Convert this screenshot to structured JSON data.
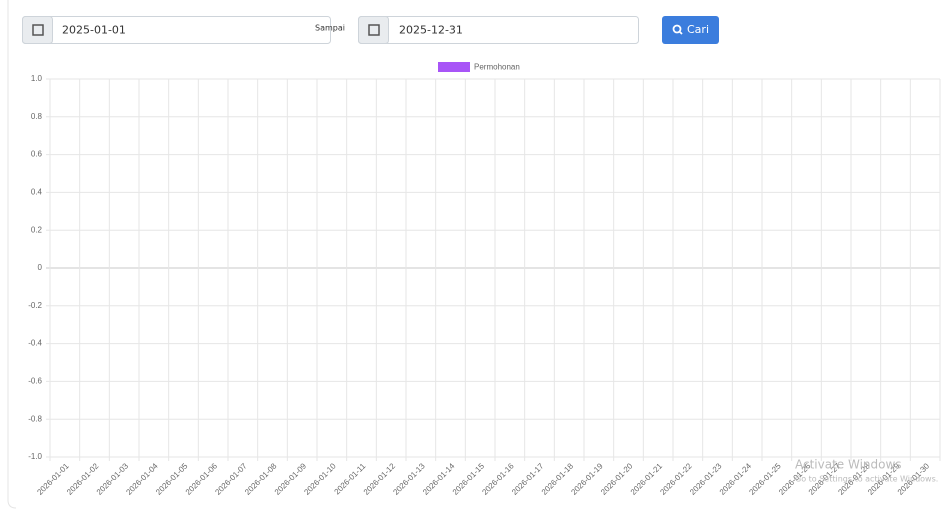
{
  "filter": {
    "start": "2025-01-01",
    "separator": "Sampai",
    "end": "2025-12-31",
    "button": "Cari"
  },
  "chart_data": {
    "type": "line",
    "categories": [
      "2026-01-01",
      "2026-01-02",
      "2026-01-03",
      "2026-01-04",
      "2026-01-05",
      "2026-01-06",
      "2026-01-07",
      "2026-01-08",
      "2026-01-09",
      "2026-01-10",
      "2026-01-11",
      "2026-01-12",
      "2026-01-13",
      "2026-01-14",
      "2026-01-15",
      "2026-01-16",
      "2026-01-17",
      "2026-01-18",
      "2026-01-19",
      "2026-01-20",
      "2026-01-21",
      "2026-01-22",
      "2026-01-23",
      "2026-01-24",
      "2026-01-25",
      "2026-01-26",
      "2026-01-27",
      "2026-01-28",
      "2026-01-29",
      "2026-01-30"
    ],
    "series": [
      {
        "name": "Permohonan",
        "color": "#a855f7",
        "values": [
          null,
          null,
          null,
          null,
          null,
          null,
          null,
          null,
          null,
          null,
          null,
          null,
          null,
          null,
          null,
          null,
          null,
          null,
          null,
          null,
          null,
          null,
          null,
          null,
          null,
          null,
          null,
          null,
          null,
          null
        ]
      }
    ],
    "ylim": [
      -1,
      1
    ],
    "yticks": [
      {
        "value": -1,
        "label": "-1.0"
      },
      -0.8,
      -0.6,
      -0.4,
      -0.2,
      0,
      0.2,
      0.4,
      0.6,
      0.8,
      {
        "value": 1,
        "label": "1.0"
      }
    ],
    "grid": true,
    "legend": "top"
  },
  "watermark": {
    "title": "Activate Windows",
    "text": "Go to Settings to activate Windows."
  }
}
